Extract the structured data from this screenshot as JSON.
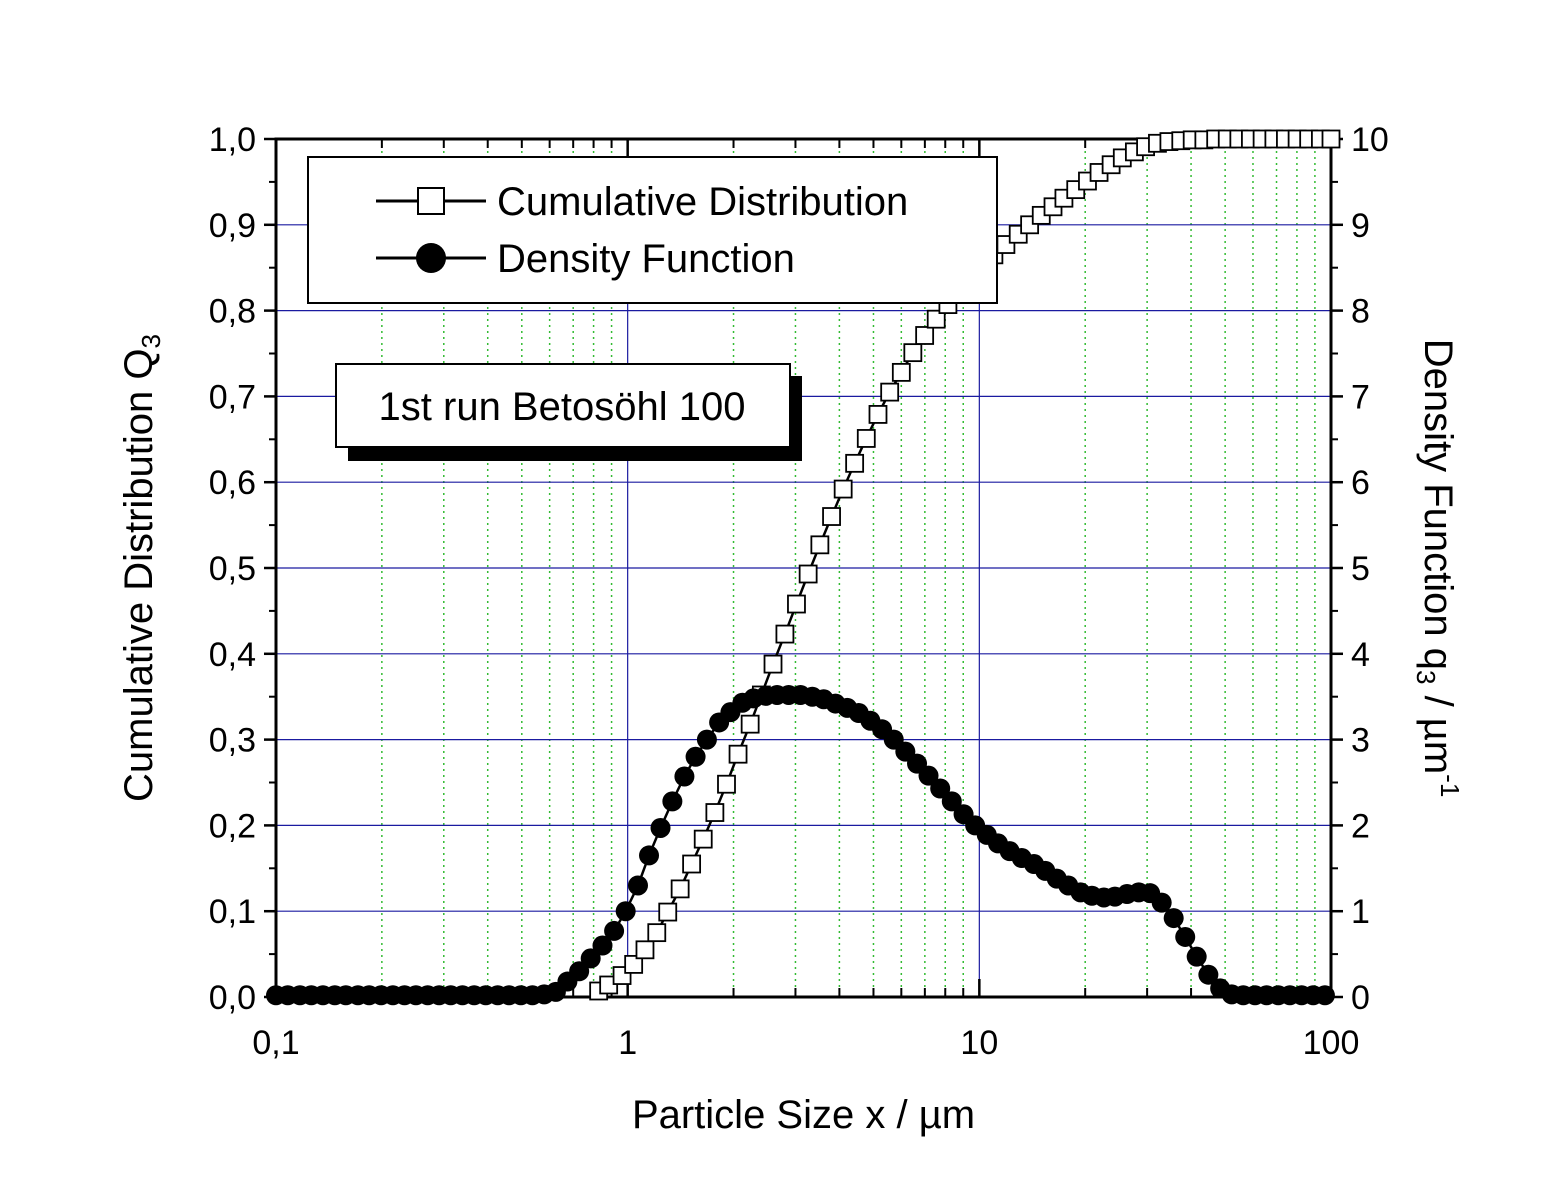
{
  "chart_data": {
    "type": "line",
    "xscale": "log",
    "xlim": [
      0.1,
      100
    ],
    "ylim_left": [
      0,
      1.0
    ],
    "ylim_right": [
      0,
      10
    ],
    "xlabel": "Particle Size x / µm",
    "ylabel_left": {
      "main": "Cumulative Distribution Q",
      "sub": "3"
    },
    "ylabel_right": {
      "main": "Density Function q",
      "sub": "3",
      "rest": " / µm",
      "sup": "-1"
    },
    "x_ticks": [
      {
        "value": 0.1,
        "label": "0,1"
      },
      {
        "value": 1,
        "label": "1"
      },
      {
        "value": 10,
        "label": "10"
      },
      {
        "value": 100,
        "label": "100"
      }
    ],
    "y_ticks_left": [
      {
        "value": 0.0,
        "label": "0,0"
      },
      {
        "value": 0.1,
        "label": "0,1"
      },
      {
        "value": 0.2,
        "label": "0,2"
      },
      {
        "value": 0.3,
        "label": "0,3"
      },
      {
        "value": 0.4,
        "label": "0,4"
      },
      {
        "value": 0.5,
        "label": "0,5"
      },
      {
        "value": 0.6,
        "label": "0,6"
      },
      {
        "value": 0.7,
        "label": "0,7"
      },
      {
        "value": 0.8,
        "label": "0,8"
      },
      {
        "value": 0.9,
        "label": "0,9"
      },
      {
        "value": 1.0,
        "label": "1,0"
      }
    ],
    "y_ticks_right": [
      {
        "value": 0,
        "label": "0"
      },
      {
        "value": 1,
        "label": "1"
      },
      {
        "value": 2,
        "label": "2"
      },
      {
        "value": 3,
        "label": "3"
      },
      {
        "value": 4,
        "label": "4"
      },
      {
        "value": 5,
        "label": "5"
      },
      {
        "value": 6,
        "label": "6"
      },
      {
        "value": 7,
        "label": "7"
      },
      {
        "value": 8,
        "label": "8"
      },
      {
        "value": 9,
        "label": "9"
      },
      {
        "value": 10,
        "label": "10"
      }
    ],
    "grid": {
      "major": true,
      "major_color": "#1a1aa0",
      "minor_x": true,
      "minor_color": "#33bb33"
    },
    "legend": {
      "position": "top-left"
    },
    "annotation": "1st run Betosöhl 100",
    "series": [
      {
        "name": "Cumulative Distribution",
        "axis": "left",
        "marker": "open-square",
        "color": "#000000",
        "x": [
          0.827,
          0.883,
          0.964,
          1.04,
          1.12,
          1.21,
          1.3,
          1.41,
          1.52,
          1.64,
          1.77,
          1.91,
          2.06,
          2.23,
          2.4,
          2.59,
          2.8,
          3.02,
          3.26,
          3.52,
          3.8,
          4.1,
          4.42,
          4.77,
          5.15,
          5.56,
          6.0,
          6.47,
          6.99,
          7.54,
          8.14,
          8.78,
          9.48,
          10.2,
          11.0,
          11.9,
          12.9,
          13.9,
          15.0,
          16.2,
          17.4,
          18.8,
          20.3,
          21.9,
          23.7,
          25.5,
          27.6,
          29.7,
          32.1,
          34.6,
          37.4,
          40.3,
          43.5,
          47.0,
          50.7,
          54.7,
          59.0,
          63.7,
          68.8,
          74.2,
          80.1,
          86.4,
          93.3,
          100
        ],
        "y": [
          0.007,
          0.014,
          0.025,
          0.038,
          0.055,
          0.075,
          0.099,
          0.126,
          0.155,
          0.184,
          0.215,
          0.248,
          0.283,
          0.318,
          0.352,
          0.388,
          0.423,
          0.458,
          0.493,
          0.527,
          0.56,
          0.592,
          0.622,
          0.651,
          0.679,
          0.705,
          0.728,
          0.751,
          0.771,
          0.79,
          0.807,
          0.823,
          0.838,
          0.852,
          0.865,
          0.877,
          0.889,
          0.9,
          0.911,
          0.921,
          0.931,
          0.941,
          0.951,
          0.961,
          0.97,
          0.978,
          0.985,
          0.991,
          0.995,
          0.997,
          0.998,
          0.999,
          0.999,
          1.0,
          1.0,
          1.0,
          1.0,
          1.0,
          1.0,
          1.0,
          1.0,
          1.0,
          1.0,
          1.0
        ]
      },
      {
        "name": "Density Function",
        "axis": "right",
        "marker": "filled-circle",
        "color": "#000000",
        "x": [
          0.1,
          0.108,
          0.117,
          0.126,
          0.136,
          0.147,
          0.158,
          0.171,
          0.184,
          0.199,
          0.215,
          0.232,
          0.25,
          0.27,
          0.291,
          0.314,
          0.339,
          0.366,
          0.395,
          0.427,
          0.46,
          0.497,
          0.536,
          0.579,
          0.625,
          0.674,
          0.728,
          0.785,
          0.848,
          0.915,
          0.987,
          1.07,
          1.15,
          1.24,
          1.34,
          1.45,
          1.56,
          1.68,
          1.82,
          1.96,
          2.12,
          2.28,
          2.47,
          2.66,
          2.87,
          3.1,
          3.35,
          3.61,
          3.9,
          4.21,
          4.54,
          4.9,
          5.29,
          5.71,
          6.16,
          6.65,
          7.17,
          7.74,
          8.35,
          9.02,
          9.73,
          10.5,
          11.3,
          12.2,
          13.2,
          14.3,
          15.4,
          16.6,
          17.9,
          19.4,
          20.9,
          22.6,
          24.3,
          26.3,
          28.4,
          30.6,
          33.0,
          35.7,
          38.5,
          41.5,
          44.8,
          48.4,
          52.2,
          56.3,
          60.8,
          65.6,
          70.8,
          76.4,
          82.5,
          89.0,
          96.1
        ],
        "y": [
          0.02,
          0.02,
          0.02,
          0.02,
          0.02,
          0.02,
          0.02,
          0.02,
          0.02,
          0.02,
          0.02,
          0.02,
          0.02,
          0.02,
          0.02,
          0.02,
          0.02,
          0.02,
          0.02,
          0.02,
          0.02,
          0.02,
          0.02,
          0.03,
          0.06,
          0.18,
          0.3,
          0.45,
          0.6,
          0.77,
          1.0,
          1.3,
          1.65,
          1.97,
          2.28,
          2.57,
          2.8,
          3.0,
          3.2,
          3.32,
          3.43,
          3.48,
          3.51,
          3.52,
          3.52,
          3.52,
          3.5,
          3.47,
          3.42,
          3.37,
          3.31,
          3.22,
          3.12,
          3.0,
          2.86,
          2.72,
          2.58,
          2.43,
          2.28,
          2.13,
          2.0,
          1.89,
          1.79,
          1.7,
          1.62,
          1.55,
          1.47,
          1.38,
          1.3,
          1.22,
          1.18,
          1.16,
          1.17,
          1.2,
          1.22,
          1.21,
          1.1,
          0.92,
          0.7,
          0.47,
          0.26,
          0.1,
          0.03,
          0.02,
          0.02,
          0.02,
          0.02,
          0.02,
          0.02,
          0.02,
          0.02
        ]
      }
    ]
  }
}
